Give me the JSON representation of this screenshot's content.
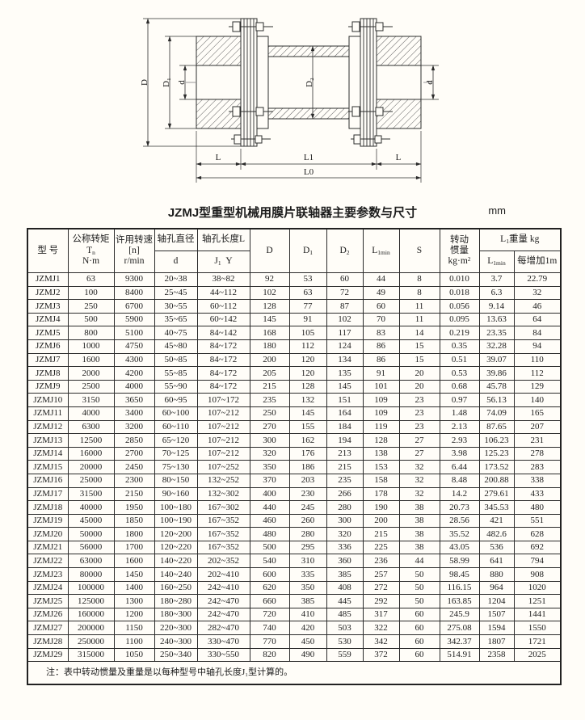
{
  "page": {
    "title": "JZMJ型重型机械用膜片联轴器主要参数与尺寸",
    "unit": "mm"
  },
  "drawing": {
    "dims": {
      "D": "D",
      "D1": "D₁",
      "d_left": "d",
      "D2": "D₂",
      "d_right": "d",
      "L_left": "L",
      "L1": "L1",
      "L_right": "L",
      "L0": "L0"
    }
  },
  "table": {
    "headers": {
      "model": "型 号",
      "torque": {
        "l1": "公称转矩",
        "base": "T",
        "sub": "n",
        "unit": "N·m"
      },
      "speed": {
        "l1": "许用转速",
        "l2": "[n]",
        "l3": "r/min"
      },
      "bore_d": {
        "top": "轴孔直径",
        "bottom": "d"
      },
      "bore_l": {
        "top": "轴孔长度L",
        "base": "J",
        "sub": "1",
        "rest": "Y"
      },
      "D": "D",
      "D1": {
        "base": "D",
        "sub": "1"
      },
      "D2": {
        "base": "D",
        "sub": "2"
      },
      "L1min": {
        "base": "L",
        "sub": "1min"
      },
      "S": "S",
      "inertia": {
        "l1": "转动",
        "l2": "惯量",
        "base": "kg·m",
        "sup": "2"
      },
      "weight": {
        "group_base": "L",
        "group_sub": "1",
        "group_rest": "重量 kg",
        "col1_base": "L",
        "col1_sub": "1min",
        "col2": "每增加1m"
      }
    },
    "rows": [
      [
        "JZMJ1",
        "63",
        "9300",
        "20~38",
        "38~82",
        "92",
        "53",
        "60",
        "44",
        "8",
        "0.010",
        "3.7",
        "22.79"
      ],
      [
        "JZMJ2",
        "100",
        "8400",
        "25~45",
        "44~112",
        "102",
        "63",
        "72",
        "49",
        "8",
        "0.018",
        "6.3",
        "32"
      ],
      [
        "JZMJ3",
        "250",
        "6700",
        "30~55",
        "60~112",
        "128",
        "77",
        "87",
        "60",
        "11",
        "0.056",
        "9.14",
        "46"
      ],
      [
        "JZMJ4",
        "500",
        "5900",
        "35~65",
        "60~142",
        "145",
        "91",
        "102",
        "70",
        "11",
        "0.095",
        "13.63",
        "64"
      ],
      [
        "JZMJ5",
        "800",
        "5100",
        "40~75",
        "84~142",
        "168",
        "105",
        "117",
        "83",
        "14",
        "0.219",
        "23.35",
        "84"
      ],
      [
        "JZMJ6",
        "1000",
        "4750",
        "45~80",
        "84~172",
        "180",
        "112",
        "124",
        "86",
        "15",
        "0.35",
        "32.28",
        "94"
      ],
      [
        "JZMJ7",
        "1600",
        "4300",
        "50~85",
        "84~172",
        "200",
        "120",
        "134",
        "86",
        "15",
        "0.51",
        "39.07",
        "110"
      ],
      [
        "JZMJ8",
        "2000",
        "4200",
        "55~85",
        "84~172",
        "205",
        "120",
        "135",
        "91",
        "20",
        "0.53",
        "39.86",
        "112"
      ],
      [
        "JZMJ9",
        "2500",
        "4000",
        "55~90",
        "84~172",
        "215",
        "128",
        "145",
        "101",
        "20",
        "0.68",
        "45.78",
        "129"
      ],
      [
        "JZMJ10",
        "3150",
        "3650",
        "60~95",
        "107~172",
        "235",
        "132",
        "151",
        "109",
        "23",
        "0.97",
        "56.13",
        "140"
      ],
      [
        "JZMJ11",
        "4000",
        "3400",
        "60~100",
        "107~212",
        "250",
        "145",
        "164",
        "109",
        "23",
        "1.48",
        "74.09",
        "165"
      ],
      [
        "JZMJ12",
        "6300",
        "3200",
        "60~110",
        "107~212",
        "270",
        "155",
        "184",
        "119",
        "23",
        "2.13",
        "87.65",
        "207"
      ],
      [
        "JZMJ13",
        "12500",
        "2850",
        "65~120",
        "107~212",
        "300",
        "162",
        "194",
        "128",
        "27",
        "2.93",
        "106.23",
        "231"
      ],
      [
        "JZMJ14",
        "16000",
        "2700",
        "70~125",
        "107~212",
        "320",
        "176",
        "213",
        "138",
        "27",
        "3.98",
        "125.23",
        "278"
      ],
      [
        "JZMJ15",
        "20000",
        "2450",
        "75~130",
        "107~252",
        "350",
        "186",
        "215",
        "153",
        "32",
        "6.44",
        "173.52",
        "283"
      ],
      [
        "JZMJ16",
        "25000",
        "2300",
        "80~150",
        "132~252",
        "370",
        "203",
        "235",
        "158",
        "32",
        "8.48",
        "200.88",
        "338"
      ],
      [
        "JZMJ17",
        "31500",
        "2150",
        "90~160",
        "132~302",
        "400",
        "230",
        "266",
        "178",
        "32",
        "14.2",
        "279.61",
        "433"
      ],
      [
        "JZMJ18",
        "40000",
        "1950",
        "100~180",
        "167~302",
        "440",
        "245",
        "280",
        "190",
        "38",
        "20.73",
        "345.53",
        "480"
      ],
      [
        "JZMJ19",
        "45000",
        "1850",
        "100~190",
        "167~352",
        "460",
        "260",
        "300",
        "200",
        "38",
        "28.56",
        "421",
        "551"
      ],
      [
        "JZMJ20",
        "50000",
        "1800",
        "120~200",
        "167~352",
        "480",
        "280",
        "320",
        "215",
        "38",
        "35.52",
        "482.6",
        "628"
      ],
      [
        "JZMJ21",
        "56000",
        "1700",
        "120~220",
        "167~352",
        "500",
        "295",
        "336",
        "225",
        "38",
        "43.05",
        "536",
        "692"
      ],
      [
        "JZMJ22",
        "63000",
        "1600",
        "140~220",
        "202~352",
        "540",
        "310",
        "360",
        "236",
        "44",
        "58.99",
        "641",
        "794"
      ],
      [
        "JZMJ23",
        "80000",
        "1450",
        "140~240",
        "202~410",
        "600",
        "335",
        "385",
        "257",
        "50",
        "98.45",
        "880",
        "908"
      ],
      [
        "JZMJ24",
        "100000",
        "1400",
        "160~250",
        "242~410",
        "620",
        "350",
        "408",
        "272",
        "50",
        "116.15",
        "964",
        "1020"
      ],
      [
        "JZMJ25",
        "125000",
        "1300",
        "180~280",
        "242~470",
        "660",
        "385",
        "445",
        "292",
        "50",
        "163.85",
        "1204",
        "1251"
      ],
      [
        "JZMJ26",
        "160000",
        "1200",
        "180~300",
        "242~470",
        "720",
        "410",
        "485",
        "317",
        "60",
        "245.9",
        "1507",
        "1441"
      ],
      [
        "JZMJ27",
        "200000",
        "1150",
        "220~300",
        "282~470",
        "740",
        "420",
        "503",
        "322",
        "60",
        "275.08",
        "1594",
        "1550"
      ],
      [
        "JZMJ28",
        "250000",
        "1100",
        "240~300",
        "330~470",
        "770",
        "450",
        "530",
        "342",
        "60",
        "342.37",
        "1807",
        "1721"
      ],
      [
        "JZMJ29",
        "315000",
        "1050",
        "250~340",
        "330~550",
        "820",
        "490",
        "559",
        "372",
        "60",
        "514.91",
        "2358",
        "2025"
      ]
    ]
  },
  "note": "注：表中转动惯量及重量是以每种型号中轴孔长度J₁型计算的。"
}
